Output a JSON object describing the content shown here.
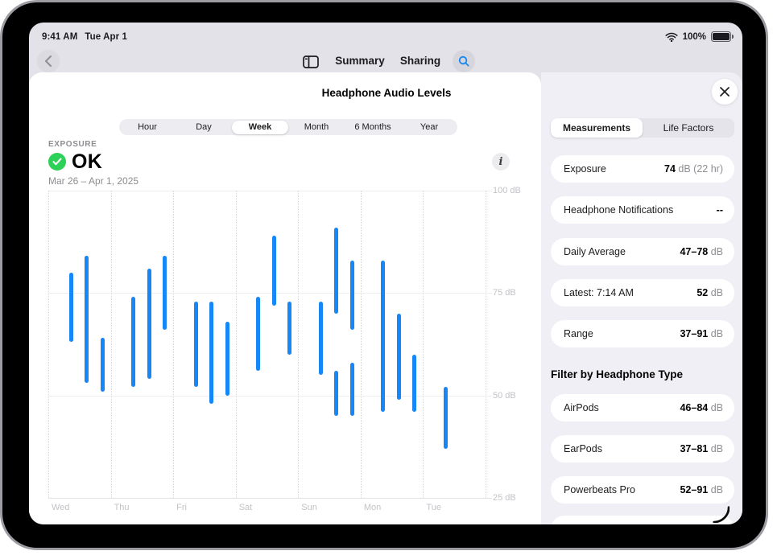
{
  "status_bar": {
    "time": "9:41 AM",
    "date": "Tue Apr 1",
    "battery_percent": "100%"
  },
  "nav": {
    "summary_label": "Summary",
    "sharing_label": "Sharing"
  },
  "panel": {
    "title": "Headphone Audio Levels"
  },
  "time_range_tabs": {
    "options": [
      "Hour",
      "Day",
      "Week",
      "Month",
      "6 Months",
      "Year"
    ],
    "selected": "Week"
  },
  "exposure": {
    "eyebrow": "EXPOSURE",
    "status": "OK",
    "date_range": "Mar 26 – Apr 1, 2025"
  },
  "chart_data": {
    "type": "range-bar",
    "title": "Headphone audio level exposure by day (Week view)",
    "unit": "dB",
    "ylim": [
      25,
      100
    ],
    "y_ticks": [
      {
        "value": 100,
        "label": "100 dB"
      },
      {
        "value": 75,
        "label": "75 dB"
      },
      {
        "value": 50,
        "label": "50 dB"
      },
      {
        "value": 25,
        "label": "25 dB"
      }
    ],
    "days": [
      "Wed",
      "Thu",
      "Fri",
      "Sat",
      "Sun",
      "Mon",
      "Tue"
    ],
    "bars": [
      {
        "day": "Wed",
        "slot": 0,
        "low": 63,
        "high": 80
      },
      {
        "day": "Wed",
        "slot": 1,
        "low": 53,
        "high": 84
      },
      {
        "day": "Wed",
        "slot": 2,
        "low": 51,
        "high": 64
      },
      {
        "day": "Thu",
        "slot": 0,
        "low": 52,
        "high": 74
      },
      {
        "day": "Thu",
        "slot": 1,
        "low": 54,
        "high": 81
      },
      {
        "day": "Thu",
        "slot": 2,
        "low": 66,
        "high": 84
      },
      {
        "day": "Fri",
        "slot": 0,
        "low": 52,
        "high": 73
      },
      {
        "day": "Fri",
        "slot": 1,
        "low": 48,
        "high": 73
      },
      {
        "day": "Fri",
        "slot": 2,
        "low": 50,
        "high": 68
      },
      {
        "day": "Sat",
        "slot": 0,
        "low": 56,
        "high": 74
      },
      {
        "day": "Sat",
        "slot": 1,
        "low": 72,
        "high": 89
      },
      {
        "day": "Sat",
        "slot": 2,
        "low": 60,
        "high": 73
      },
      {
        "day": "Sun",
        "slot": 0,
        "low": 55,
        "high": 73
      },
      {
        "day": "Sun",
        "slot": 1,
        "low": 70,
        "high": 91
      },
      {
        "day": "Sun",
        "slot": 1,
        "low": 45,
        "high": 56
      },
      {
        "day": "Sun",
        "slot": 2,
        "low": 66,
        "high": 83
      },
      {
        "day": "Sun",
        "slot": 2,
        "low": 45,
        "high": 58
      },
      {
        "day": "Mon",
        "slot": 0,
        "low": 46,
        "high": 83
      },
      {
        "day": "Mon",
        "slot": 1,
        "low": 49,
        "high": 70
      },
      {
        "day": "Mon",
        "slot": 2,
        "low": 46,
        "high": 60
      },
      {
        "day": "Tue",
        "slot": 0,
        "low": 37,
        "high": 52
      }
    ],
    "bar_color": "#1787f6",
    "grid": true,
    "tick_label_side": "right"
  },
  "sidebar": {
    "tabs": {
      "options": [
        "Measurements",
        "Life Factors"
      ],
      "selected": "Measurements"
    },
    "measurements": [
      {
        "label": "Exposure",
        "value": "74",
        "unit": "dB (22 hr)"
      },
      {
        "label": "Headphone Notifications",
        "value": "--",
        "unit": ""
      },
      {
        "label": "Daily Average",
        "value": "47–78",
        "unit": "dB"
      },
      {
        "label": "Latest: 7:14 AM",
        "value": "52",
        "unit": "dB"
      },
      {
        "label": "Range",
        "value": "37–91",
        "unit": "dB"
      }
    ],
    "filter_header": "Filter by Headphone Type",
    "headphone_types": [
      {
        "label": "AirPods",
        "value": "46–84",
        "unit": "dB"
      },
      {
        "label": "EarPods",
        "value": "37–81",
        "unit": "dB"
      },
      {
        "label": "Powerbeats Pro",
        "value": "52–91",
        "unit": "dB"
      }
    ]
  },
  "icons": {
    "back": "chevron-left",
    "sidebar_toggle": "sidebar-panel",
    "search": "magnifier",
    "info": "info-i",
    "status_ok": "checkmark-circle",
    "close": "x-mark",
    "wifi": "wifi-waves",
    "battery": "battery-full"
  },
  "colors": {
    "accent_blue": "#1787f6",
    "ok_green": "#2ed158",
    "panel_bg": "#f0eff5",
    "chrome_bg": "#e3e2e8"
  }
}
